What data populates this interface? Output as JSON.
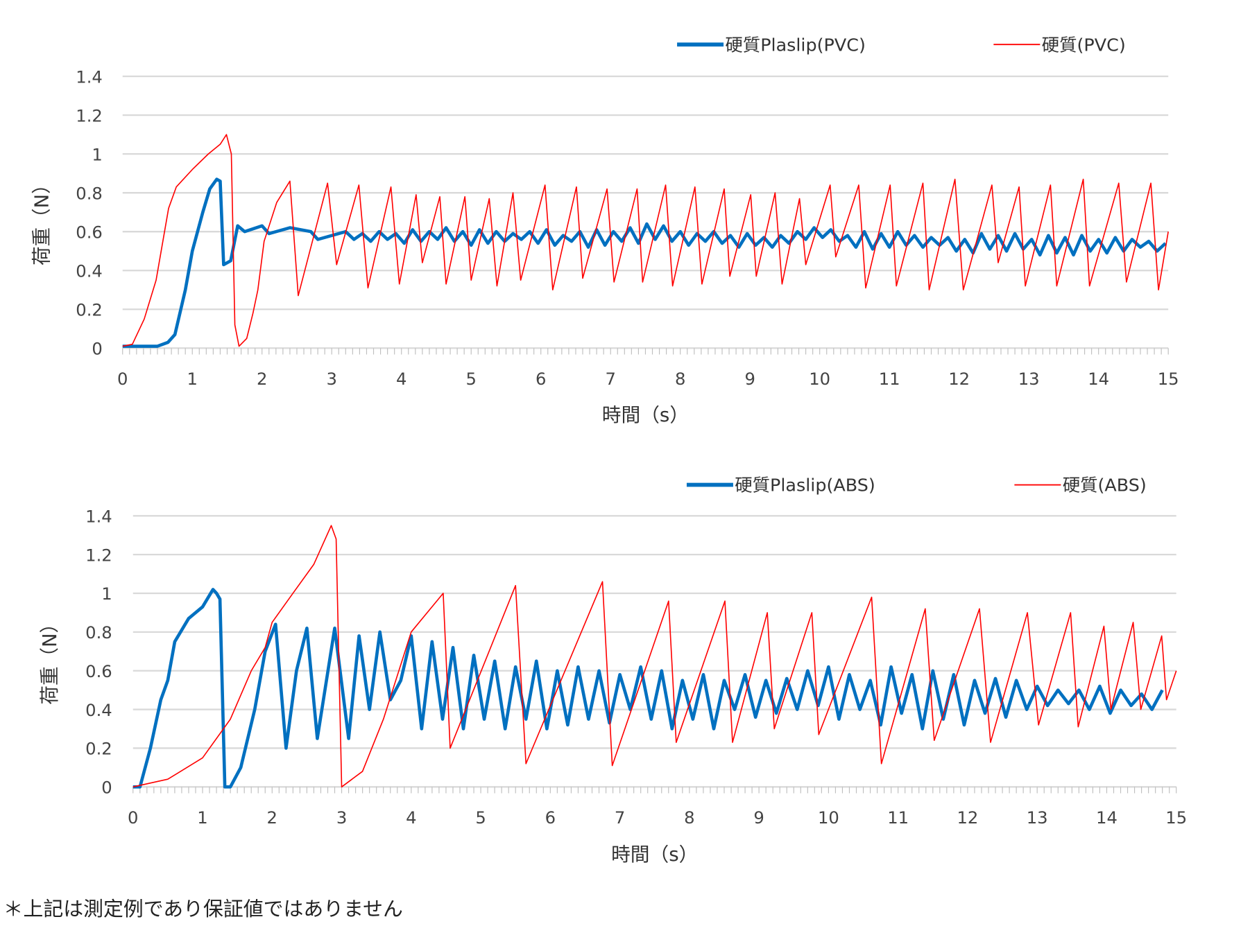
{
  "footnote": "＊上記は測定例であり保証値ではありません",
  "colors": {
    "blue": "#0070c0",
    "red": "#ff0000",
    "grid": "#d9d9d9"
  },
  "chart_data": [
    {
      "type": "line",
      "title": "",
      "xlabel": "時間（s）",
      "ylabel": "荷重（N）",
      "xlim": [
        0,
        15
      ],
      "ylim": [
        0,
        1.4
      ],
      "xticks": [
        "0",
        "1",
        "2",
        "3",
        "4",
        "5",
        "6",
        "7",
        "8",
        "9",
        "10",
        "11",
        "12",
        "13",
        "14",
        "15"
      ],
      "yticks": [
        "0",
        "0.2",
        "0.4",
        "0.6",
        "0.8",
        "1",
        "1.2",
        "1.4"
      ],
      "grid": true,
      "legend": "top-right",
      "series": [
        {
          "name": "硬質Plaslip(PVC)",
          "color": "#0070c0",
          "points": [
            [
              0,
              0.01
            ],
            [
              0.5,
              0.01
            ],
            [
              0.65,
              0.03
            ],
            [
              0.75,
              0.07
            ],
            [
              0.9,
              0.3
            ],
            [
              1.0,
              0.5
            ],
            [
              1.15,
              0.7
            ],
            [
              1.25,
              0.82
            ],
            [
              1.35,
              0.87
            ],
            [
              1.4,
              0.86
            ],
            [
              1.45,
              0.43
            ],
            [
              1.55,
              0.45
            ],
            [
              1.65,
              0.63
            ],
            [
              1.75,
              0.6
            ],
            [
              2.0,
              0.63
            ],
            [
              2.1,
              0.59
            ],
            [
              2.4,
              0.62
            ],
            [
              2.7,
              0.6
            ],
            [
              2.8,
              0.56
            ],
            [
              3.0,
              0.58
            ]
          ],
          "tail": {
            "start": 3.2,
            "step": 0.12,
            "values": [
              0.6,
              0.56,
              0.59,
              0.55,
              0.6,
              0.56,
              0.59,
              0.54,
              0.61,
              0.55,
              0.6,
              0.56,
              0.62,
              0.55,
              0.6,
              0.53,
              0.61,
              0.54,
              0.6,
              0.55,
              0.59,
              0.56,
              0.6,
              0.54,
              0.61,
              0.53,
              0.58,
              0.55,
              0.6,
              0.52,
              0.61,
              0.53,
              0.6,
              0.55,
              0.62,
              0.54,
              0.64,
              0.56,
              0.63,
              0.55,
              0.6,
              0.53,
              0.59,
              0.55,
              0.6,
              0.54,
              0.58,
              0.52,
              0.59,
              0.53,
              0.57,
              0.52,
              0.58,
              0.54,
              0.6,
              0.56,
              0.62,
              0.57,
              0.61,
              0.55,
              0.58,
              0.52,
              0.6,
              0.51,
              0.59,
              0.52,
              0.6,
              0.53,
              0.58,
              0.52,
              0.57,
              0.53,
              0.57,
              0.5,
              0.56,
              0.49,
              0.59,
              0.51,
              0.58,
              0.5,
              0.59,
              0.51,
              0.56,
              0.48,
              0.58,
              0.49,
              0.57,
              0.48,
              0.58,
              0.5,
              0.56,
              0.49,
              0.57,
              0.5,
              0.56,
              0.52,
              0.55,
              0.5,
              0.54
            ]
          }
        },
        {
          "name": "硬質(PVC)",
          "color": "#ff0000",
          "points": [
            [
              0,
              0.01
            ],
            [
              0.14,
              0.02
            ],
            [
              0.31,
              0.15
            ],
            [
              0.48,
              0.35
            ],
            [
              0.66,
              0.72
            ],
            [
              0.77,
              0.83
            ],
            [
              1.0,
              0.92
            ],
            [
              1.23,
              1.0
            ],
            [
              1.4,
              1.05
            ],
            [
              1.49,
              1.1
            ],
            [
              1.56,
              1.0
            ],
            [
              1.61,
              0.12
            ],
            [
              1.67,
              0.01
            ],
            [
              1.78,
              0.05
            ],
            [
              1.87,
              0.18
            ],
            [
              1.94,
              0.3
            ],
            [
              2.03,
              0.55
            ],
            [
              2.21,
              0.75
            ],
            [
              2.4,
              0.86
            ],
            [
              2.52,
              0.27
            ],
            [
              2.94,
              0.85
            ],
            [
              3.07,
              0.43
            ],
            [
              3.39,
              0.84
            ],
            [
              3.52,
              0.31
            ],
            [
              3.85,
              0.83
            ],
            [
              3.97,
              0.33
            ],
            [
              4.21,
              0.79
            ],
            [
              4.3,
              0.44
            ],
            [
              4.55,
              0.78
            ],
            [
              4.64,
              0.33
            ],
            [
              4.91,
              0.78
            ],
            [
              5.0,
              0.35
            ],
            [
              5.26,
              0.77
            ],
            [
              5.37,
              0.32
            ],
            [
              5.6,
              0.8
            ],
            [
              5.71,
              0.35
            ],
            [
              6.06,
              0.84
            ],
            [
              6.17,
              0.3
            ],
            [
              6.51,
              0.83
            ],
            [
              6.6,
              0.36
            ],
            [
              6.95,
              0.82
            ],
            [
              7.05,
              0.34
            ],
            [
              7.38,
              0.82
            ],
            [
              7.46,
              0.34
            ],
            [
              7.79,
              0.84
            ],
            [
              7.89,
              0.32
            ],
            [
              8.21,
              0.83
            ],
            [
              8.31,
              0.33
            ],
            [
              8.63,
              0.82
            ],
            [
              8.71,
              0.37
            ],
            [
              9.01,
              0.79
            ],
            [
              9.09,
              0.37
            ],
            [
              9.36,
              0.8
            ],
            [
              9.46,
              0.33
            ],
            [
              9.71,
              0.77
            ],
            [
              9.8,
              0.43
            ],
            [
              10.15,
              0.84
            ],
            [
              10.23,
              0.47
            ],
            [
              10.56,
              0.84
            ],
            [
              10.66,
              0.31
            ],
            [
              11.01,
              0.84
            ],
            [
              11.1,
              0.32
            ],
            [
              11.48,
              0.85
            ],
            [
              11.57,
              0.3
            ],
            [
              11.94,
              0.87
            ],
            [
              12.06,
              0.3
            ],
            [
              12.47,
              0.84
            ],
            [
              12.56,
              0.44
            ],
            [
              12.86,
              0.83
            ],
            [
              12.95,
              0.32
            ],
            [
              13.31,
              0.84
            ],
            [
              13.4,
              0.32
            ],
            [
              13.78,
              0.87
            ],
            [
              13.87,
              0.32
            ],
            [
              14.29,
              0.85
            ],
            [
              14.4,
              0.34
            ],
            [
              14.75,
              0.85
            ],
            [
              14.86,
              0.3
            ],
            [
              15.0,
              0.6
            ]
          ]
        }
      ]
    },
    {
      "type": "line",
      "title": "",
      "xlabel": "時間（s）",
      "ylabel": "荷重（N）",
      "xlim": [
        0,
        15
      ],
      "ylim": [
        0,
        1.4
      ],
      "xticks": [
        "0",
        "1",
        "2",
        "3",
        "4",
        "5",
        "6",
        "7",
        "8",
        "9",
        "10",
        "11",
        "12",
        "13",
        "14",
        "15"
      ],
      "yticks": [
        "0",
        "0.2",
        "0.4",
        "0.6",
        "0.8",
        "1",
        "1.2",
        "1.4"
      ],
      "grid": true,
      "legend": "top-right",
      "series": [
        {
          "name": "硬質Plaslip(ABS)",
          "color": "#0070c0",
          "points": [
            [
              0,
              0.0
            ],
            [
              0.1,
              0.0
            ],
            [
              0.25,
              0.2
            ],
            [
              0.4,
              0.45
            ],
            [
              0.5,
              0.55
            ],
            [
              0.6,
              0.75
            ],
            [
              0.8,
              0.87
            ],
            [
              1.0,
              0.93
            ],
            [
              1.15,
              1.02
            ],
            [
              1.2,
              1.0
            ],
            [
              1.25,
              0.97
            ],
            [
              1.32,
              0.0
            ],
            [
              1.4,
              0.0
            ],
            [
              1.55,
              0.1
            ],
            [
              1.75,
              0.4
            ],
            [
              1.9,
              0.7
            ],
            [
              2.05,
              0.84
            ],
            [
              2.2,
              0.2
            ],
            [
              2.35,
              0.6
            ],
            [
              2.5,
              0.82
            ],
            [
              2.65,
              0.25
            ],
            [
              2.9,
              0.82
            ],
            [
              3.1,
              0.25
            ]
          ],
          "tail": {
            "start": 3.25,
            "step": 0.15,
            "values": [
              0.78,
              0.4,
              0.8,
              0.45,
              0.55,
              0.78,
              0.3,
              0.75,
              0.35,
              0.72,
              0.3,
              0.68,
              0.35,
              0.65,
              0.3,
              0.62,
              0.35,
              0.65,
              0.3,
              0.6,
              0.32,
              0.62,
              0.35,
              0.6,
              0.33,
              0.58,
              0.4,
              0.62,
              0.35,
              0.6,
              0.3,
              0.55,
              0.35,
              0.58,
              0.3,
              0.55,
              0.4,
              0.58,
              0.36,
              0.55,
              0.38,
              0.56,
              0.4,
              0.6,
              0.42,
              0.62,
              0.35,
              0.58,
              0.4,
              0.55,
              0.32,
              0.62,
              0.38,
              0.58,
              0.3,
              0.6,
              0.35,
              0.58,
              0.32,
              0.55,
              0.38,
              0.56,
              0.36,
              0.55,
              0.4,
              0.52,
              0.42,
              0.5,
              0.43,
              0.5,
              0.4,
              0.52,
              0.38,
              0.5,
              0.42,
              0.48,
              0.4,
              0.5
            ]
          }
        },
        {
          "name": "硬質(ABS)",
          "color": "#ff0000",
          "points": [
            [
              0,
              0.0
            ],
            [
              0.5,
              0.04
            ],
            [
              1.0,
              0.15
            ],
            [
              1.4,
              0.35
            ],
            [
              1.7,
              0.6
            ],
            [
              1.9,
              0.72
            ],
            [
              2.0,
              0.85
            ],
            [
              2.3,
              1.0
            ],
            [
              2.6,
              1.15
            ],
            [
              2.85,
              1.35
            ],
            [
              2.92,
              1.28
            ],
            [
              3.0,
              0.0
            ],
            [
              3.3,
              0.08
            ],
            [
              3.6,
              0.35
            ],
            [
              4.0,
              0.8
            ],
            [
              4.46,
              1.0
            ],
            [
              4.56,
              0.2
            ],
            [
              5.5,
              1.04
            ],
            [
              5.65,
              0.12
            ],
            [
              6.75,
              1.06
            ],
            [
              6.89,
              0.11
            ],
            [
              7.7,
              0.96
            ],
            [
              7.81,
              0.23
            ],
            [
              8.51,
              0.96
            ],
            [
              8.62,
              0.23
            ],
            [
              9.12,
              0.9
            ],
            [
              9.22,
              0.3
            ],
            [
              9.76,
              0.9
            ],
            [
              9.86,
              0.27
            ],
            [
              10.62,
              0.98
            ],
            [
              10.76,
              0.12
            ],
            [
              11.39,
              0.92
            ],
            [
              11.52,
              0.24
            ],
            [
              12.17,
              0.92
            ],
            [
              12.33,
              0.23
            ],
            [
              12.86,
              0.9
            ],
            [
              13.02,
              0.32
            ],
            [
              13.48,
              0.9
            ],
            [
              13.59,
              0.31
            ],
            [
              13.96,
              0.83
            ],
            [
              14.06,
              0.4
            ],
            [
              14.38,
              0.85
            ],
            [
              14.49,
              0.4
            ],
            [
              14.79,
              0.78
            ],
            [
              14.86,
              0.45
            ],
            [
              15.0,
              0.6
            ]
          ]
        }
      ]
    }
  ]
}
